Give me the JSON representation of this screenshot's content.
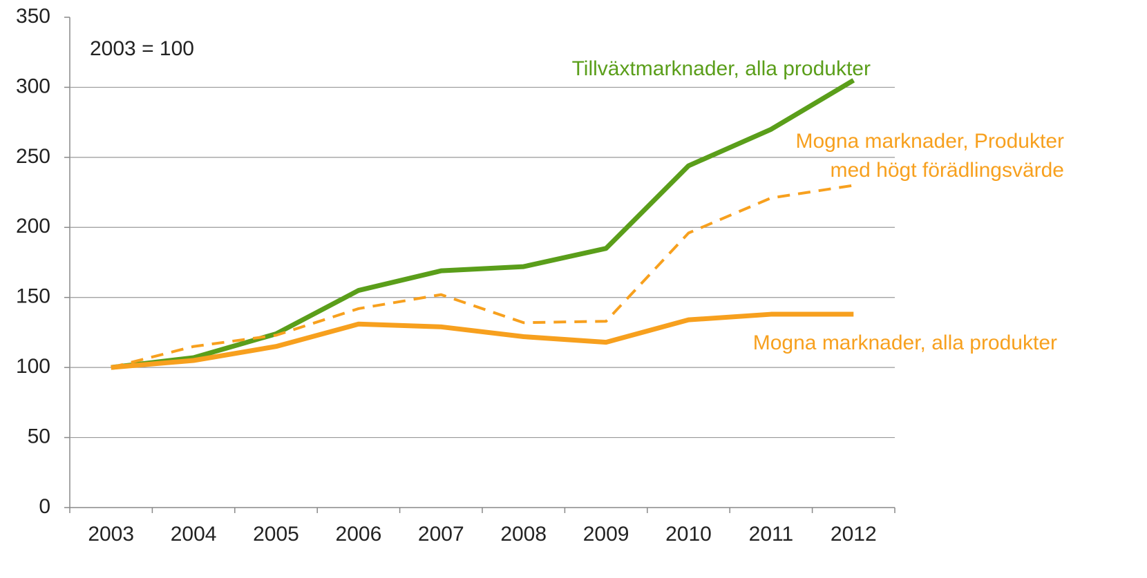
{
  "chart_data": {
    "type": "line",
    "annotation": "2003 = 100",
    "categories": [
      "2003",
      "2004",
      "2005",
      "2006",
      "2007",
      "2008",
      "2009",
      "2010",
      "2011",
      "2012"
    ],
    "series": [
      {
        "name": "Tillväxtmarknader, alla produkter",
        "color": "#5a9e1a",
        "style": "solid",
        "values": [
          100,
          107,
          124,
          155,
          169,
          172,
          185,
          244,
          270,
          305
        ]
      },
      {
        "name": "Mogna marknader, Produkter med högt förädlingsvärde",
        "color": "#f7a01e",
        "style": "dashed",
        "values": [
          100,
          115,
          123,
          142,
          152,
          132,
          133,
          196,
          221,
          230
        ]
      },
      {
        "name": "Mogna marknader, alla produkter",
        "color": "#f7a01e",
        "style": "solid",
        "values": [
          100,
          105,
          115,
          131,
          129,
          122,
          118,
          134,
          138,
          138
        ]
      }
    ],
    "ylim": [
      0,
      350
    ],
    "yticks": [
      0,
      50,
      100,
      150,
      200,
      250,
      300,
      350
    ],
    "grid": true
  }
}
